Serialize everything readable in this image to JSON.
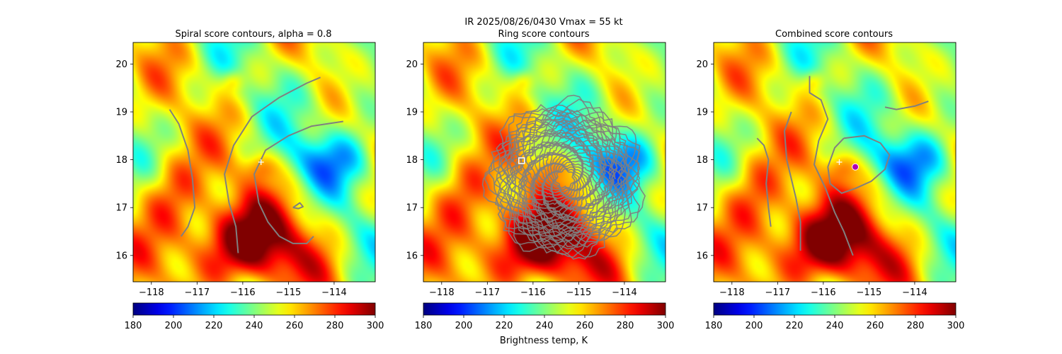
{
  "figure": {
    "suptitle_line1": "IR  2025/08/26/0430    Vmax = 55 kt",
    "colorbar_label": "Brightness temp, K"
  },
  "chart_data": [
    {
      "type": "heatmap",
      "title": "Spiral score contours, alpha =  0.8",
      "xlim": [
        -118.4,
        -113.1
      ],
      "ylim": [
        15.45,
        20.45
      ],
      "xticks": [
        -118,
        -117,
        -116,
        -115,
        -114
      ],
      "xtick_labels": [
        "−118",
        "−117",
        "−116",
        "−115",
        "−114"
      ],
      "yticks": [
        16,
        17,
        18,
        19,
        20
      ],
      "ytick_labels": [
        "16",
        "17",
        "18",
        "19",
        "20"
      ],
      "colormap": "jet_r",
      "clim": [
        180,
        300
      ],
      "colorbar_ticks": [
        180,
        200,
        220,
        240,
        260,
        280,
        300
      ],
      "colorbar_tick_labels": [
        "180",
        "200",
        "220",
        "240",
        "260",
        "280",
        "300"
      ],
      "colorbar_label": "",
      "contour_color": "#808080",
      "markers": [
        {
          "lon": -115.6,
          "lat": 17.95,
          "shape": "plus",
          "color": "#ffffff"
        }
      ],
      "contours": [
        [
          [
            -117.6,
            19.05
          ],
          [
            -117.4,
            18.75
          ],
          [
            -117.2,
            18.2
          ],
          [
            -117.1,
            17.6
          ],
          [
            -117.05,
            17.0
          ],
          [
            -117.2,
            16.6
          ],
          [
            -117.35,
            16.4
          ]
        ],
        [
          [
            -116.1,
            16.05
          ],
          [
            -116.15,
            16.6
          ],
          [
            -116.3,
            17.1
          ],
          [
            -116.4,
            17.7
          ],
          [
            -116.2,
            18.3
          ],
          [
            -115.8,
            18.9
          ],
          [
            -115.2,
            19.3
          ],
          [
            -114.6,
            19.6
          ],
          [
            -114.3,
            19.72
          ]
        ],
        [
          [
            -115.2,
            16.4
          ],
          [
            -115.45,
            16.7
          ],
          [
            -115.65,
            17.1
          ],
          [
            -115.75,
            17.7
          ],
          [
            -115.5,
            18.2
          ],
          [
            -115.0,
            18.5
          ],
          [
            -114.5,
            18.7
          ],
          [
            -113.8,
            18.8
          ]
        ],
        [
          [
            -115.2,
            16.4
          ],
          [
            -114.9,
            16.25
          ],
          [
            -114.6,
            16.25
          ],
          [
            -114.45,
            16.4
          ]
        ],
        [
          [
            -114.9,
            17.0
          ],
          [
            -114.75,
            17.1
          ],
          [
            -114.68,
            17.02
          ],
          [
            -114.78,
            16.98
          ],
          [
            -114.9,
            17.0
          ]
        ]
      ]
    },
    {
      "type": "heatmap",
      "title": "Ring score contours",
      "xlim": [
        -118.4,
        -113.1
      ],
      "ylim": [
        15.45,
        20.45
      ],
      "xticks": [
        -118,
        -117,
        -116,
        -115,
        -114
      ],
      "xtick_labels": [
        "−118",
        "−117",
        "−116",
        "−115",
        "−114"
      ],
      "yticks": [
        16,
        17,
        18,
        19,
        20
      ],
      "ytick_labels": [
        "16",
        "17",
        "18",
        "19",
        "20"
      ],
      "colormap": "jet_r",
      "clim": [
        180,
        300
      ],
      "colorbar_ticks": [
        180,
        200,
        220,
        240,
        260,
        280,
        300
      ],
      "colorbar_tick_labels": [
        "180",
        "200",
        "220",
        "240",
        "260",
        "280",
        "300"
      ],
      "colorbar_label": "Brightness temp, K",
      "contour_color": "#808080",
      "markers": [
        {
          "lon": -116.25,
          "lat": 17.98,
          "shape": "square",
          "color": "#ffffff"
        }
      ],
      "ring_region": {
        "center_lon": -115.3,
        "center_lat": 17.6,
        "radius_deg": 1.6
      }
    },
    {
      "type": "heatmap",
      "title": "Combined score contours",
      "xlim": [
        -118.4,
        -113.1
      ],
      "ylim": [
        15.45,
        20.45
      ],
      "xticks": [
        -118,
        -117,
        -116,
        -115,
        -114
      ],
      "xtick_labels": [
        "−118",
        "−117",
        "−116",
        "−115",
        "−114"
      ],
      "yticks": [
        16,
        17,
        18,
        19,
        20
      ],
      "ytick_labels": [
        "16",
        "17",
        "18",
        "19",
        "20"
      ],
      "colormap": "jet_r",
      "clim": [
        180,
        300
      ],
      "colorbar_ticks": [
        180,
        200,
        220,
        240,
        260,
        280,
        300
      ],
      "colorbar_tick_labels": [
        "180",
        "200",
        "220",
        "240",
        "260",
        "280",
        "300"
      ],
      "colorbar_label": "",
      "contour_color": "#808080",
      "markers": [
        {
          "lon": -115.65,
          "lat": 17.95,
          "shape": "plus",
          "color": "#ffffff"
        },
        {
          "lon": -115.3,
          "lat": 17.85,
          "shape": "circle",
          "color": "#b000b0"
        }
      ],
      "contours": [
        [
          [
            -117.45,
            18.45
          ],
          [
            -117.3,
            18.3
          ],
          [
            -117.2,
            18.0
          ],
          [
            -117.25,
            17.5
          ],
          [
            -117.2,
            17.0
          ],
          [
            -117.15,
            16.6
          ]
        ],
        [
          [
            -116.7,
            19.0
          ],
          [
            -116.85,
            18.6
          ],
          [
            -116.8,
            18.0
          ],
          [
            -116.6,
            17.2
          ],
          [
            -116.5,
            16.7
          ],
          [
            -116.5,
            16.1
          ]
        ],
        [
          [
            -116.3,
            19.75
          ],
          [
            -116.3,
            19.4
          ],
          [
            -116.05,
            19.25
          ],
          [
            -115.9,
            18.85
          ],
          [
            -116.1,
            18.4
          ],
          [
            -116.2,
            17.9
          ],
          [
            -115.95,
            17.4
          ],
          [
            -115.75,
            16.9
          ],
          [
            -115.55,
            16.5
          ],
          [
            -115.35,
            16.0
          ]
        ],
        [
          [
            -114.65,
            19.1
          ],
          [
            -114.4,
            19.05
          ],
          [
            -114.0,
            19.12
          ],
          [
            -113.7,
            19.22
          ]
        ],
        [
          [
            -115.55,
            18.45
          ],
          [
            -115.1,
            18.5
          ],
          [
            -114.75,
            18.35
          ],
          [
            -114.55,
            18.1
          ],
          [
            -114.65,
            17.8
          ],
          [
            -114.95,
            17.55
          ],
          [
            -115.3,
            17.4
          ],
          [
            -115.6,
            17.3
          ],
          [
            -115.85,
            17.5
          ],
          [
            -115.9,
            17.85
          ],
          [
            -115.75,
            18.25
          ],
          [
            -115.55,
            18.45
          ]
        ]
      ]
    }
  ]
}
